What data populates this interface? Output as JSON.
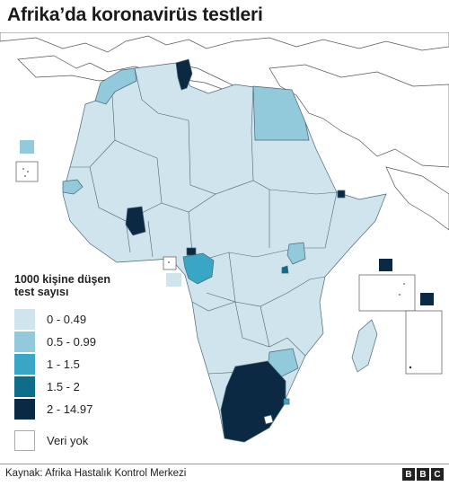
{
  "title": "Afrika’da koronavirüs testleri",
  "legend": {
    "title_line1": "1000 kişine düşen",
    "title_line2": "test sayısı",
    "items": [
      {
        "label": "0 - 0.49",
        "color": "#cfe4ed"
      },
      {
        "label": "0.5 - 0.99",
        "color": "#93cadb"
      },
      {
        "label": "1 - 1.5",
        "color": "#38a6c4"
      },
      {
        "label": "1.5 - 2",
        "color": "#0f6d8c"
      },
      {
        "label": "2 - 14.97",
        "color": "#0b2943"
      }
    ],
    "no_data": {
      "label": "Veri yok",
      "color": "#ffffff"
    }
  },
  "source": "Kaynak: Afrika Hastalık Kontrol Merkezi",
  "logo": [
    "B",
    "B",
    "C"
  ]
}
